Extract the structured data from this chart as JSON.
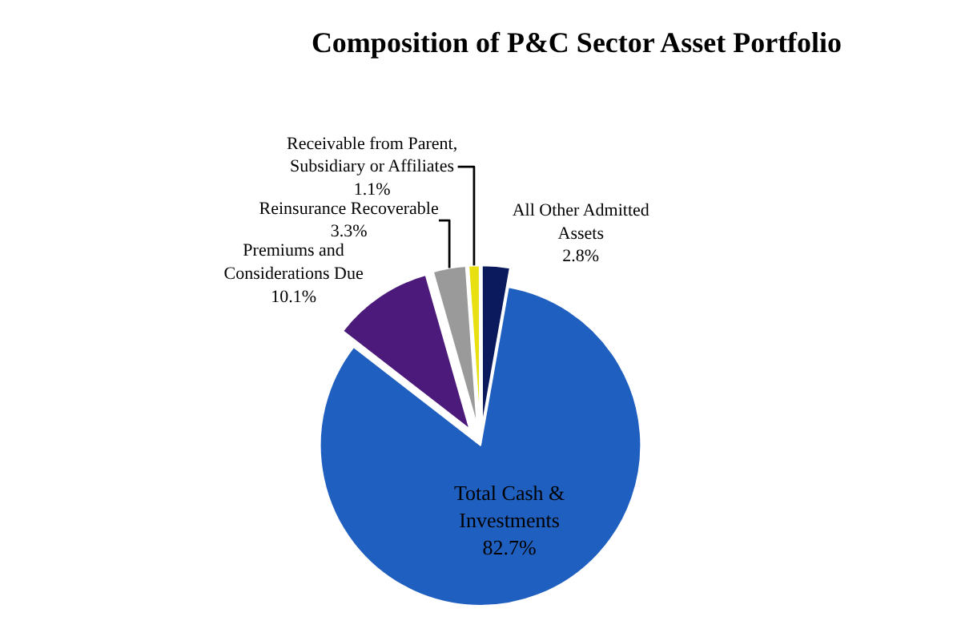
{
  "chart_data": {
    "type": "pie",
    "title": "Composition of P&C Sector Asset Portfolio",
    "categories": [
      "Total Cash & Investments",
      "Premiums and Considerations Due",
      "Reinsurance Recoverable",
      "Receivable from Parent, Subsidiary or Affiliates",
      "All Other Admitted Assets"
    ],
    "values": [
      82.7,
      10.1,
      3.3,
      1.1,
      2.8
    ],
    "value_labels": [
      "82.7%",
      "10.1%",
      "3.3%",
      "1.1%",
      "2.8%"
    ],
    "colors": [
      "#1f5fbf",
      "#4b1a7a",
      "#9a9a9a",
      "#e8e010",
      "#0a1a5c"
    ],
    "legend": false
  }
}
